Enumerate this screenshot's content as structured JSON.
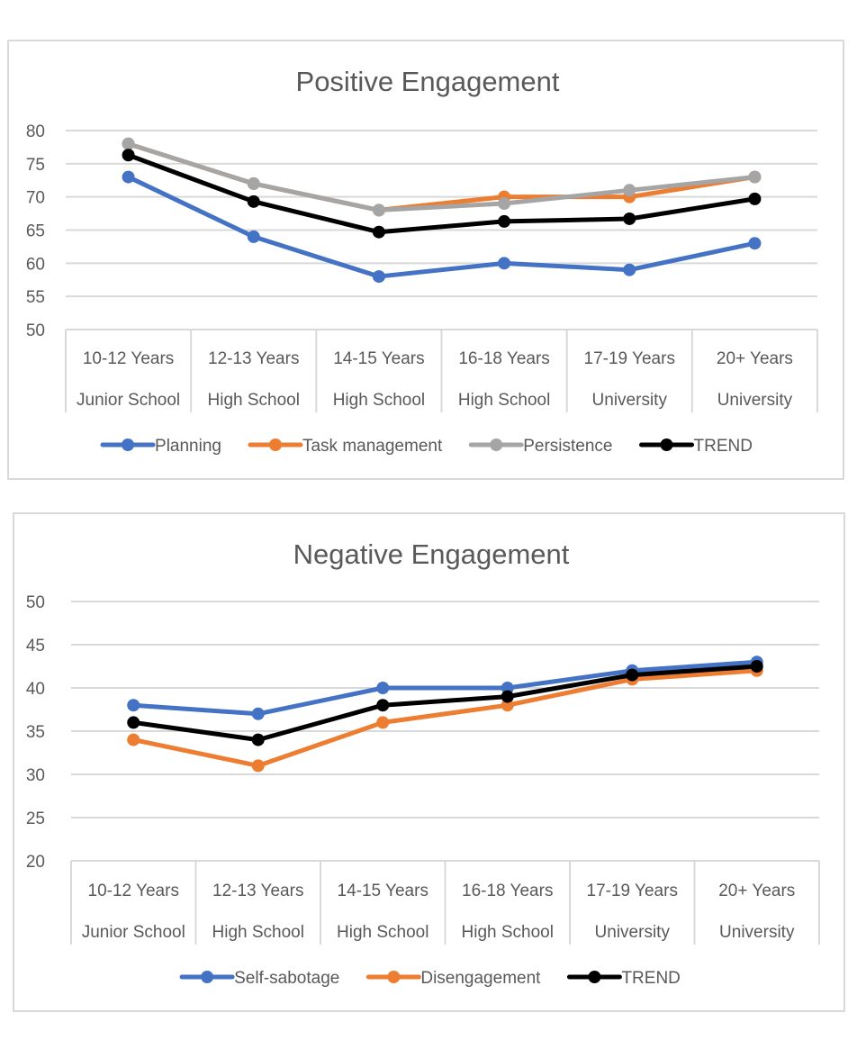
{
  "chart_data": [
    {
      "type": "line",
      "title": "Positive Engagement",
      "xlabel": "",
      "ylabel": "",
      "ylim": [
        50,
        80
      ],
      "yticks": [
        50,
        55,
        60,
        65,
        70,
        75,
        80
      ],
      "grid": true,
      "legend": "bottom",
      "categories": [
        [
          "10-12 Years",
          "Junior School"
        ],
        [
          "12-13 Years",
          "High School"
        ],
        [
          "14-15 Years",
          "High School"
        ],
        [
          "16-18 Years",
          "High School"
        ],
        [
          "17-19 Years",
          "University"
        ],
        [
          "20+ Years",
          "University"
        ]
      ],
      "series": [
        {
          "name": "Planning",
          "color": "#4472c4",
          "values": [
            73,
            64,
            58,
            60,
            59,
            63
          ]
        },
        {
          "name": "Task management",
          "color": "#ed7d31",
          "values": [
            78,
            72,
            68,
            70,
            70,
            73
          ]
        },
        {
          "name": "Persistence",
          "color": "#a5a5a5",
          "values": [
            78,
            72,
            68,
            69,
            71,
            73
          ]
        },
        {
          "name": "TREND",
          "color": "#000000",
          "values": [
            76.3,
            69.3,
            64.7,
            66.3,
            66.7,
            69.7
          ]
        }
      ]
    },
    {
      "type": "line",
      "title": "Negative Engagement",
      "xlabel": "",
      "ylabel": "",
      "ylim": [
        20,
        50
      ],
      "yticks": [
        20,
        25,
        30,
        35,
        40,
        45,
        50
      ],
      "grid": true,
      "legend": "bottom",
      "categories": [
        [
          "10-12 Years",
          "Junior School"
        ],
        [
          "12-13 Years",
          "High School"
        ],
        [
          "14-15 Years",
          "High School"
        ],
        [
          "16-18 Years",
          "High School"
        ],
        [
          "17-19 Years",
          "University"
        ],
        [
          "20+ Years",
          "University"
        ]
      ],
      "series": [
        {
          "name": "Self-sabotage",
          "color": "#4472c4",
          "values": [
            38,
            37,
            40,
            40,
            42,
            43
          ]
        },
        {
          "name": "Disengagement",
          "color": "#ed7d31",
          "values": [
            34,
            31,
            36,
            38,
            41,
            42
          ]
        },
        {
          "name": "TREND",
          "color": "#000000",
          "values": [
            36,
            34,
            38,
            39,
            41.5,
            42.5
          ]
        }
      ]
    }
  ]
}
